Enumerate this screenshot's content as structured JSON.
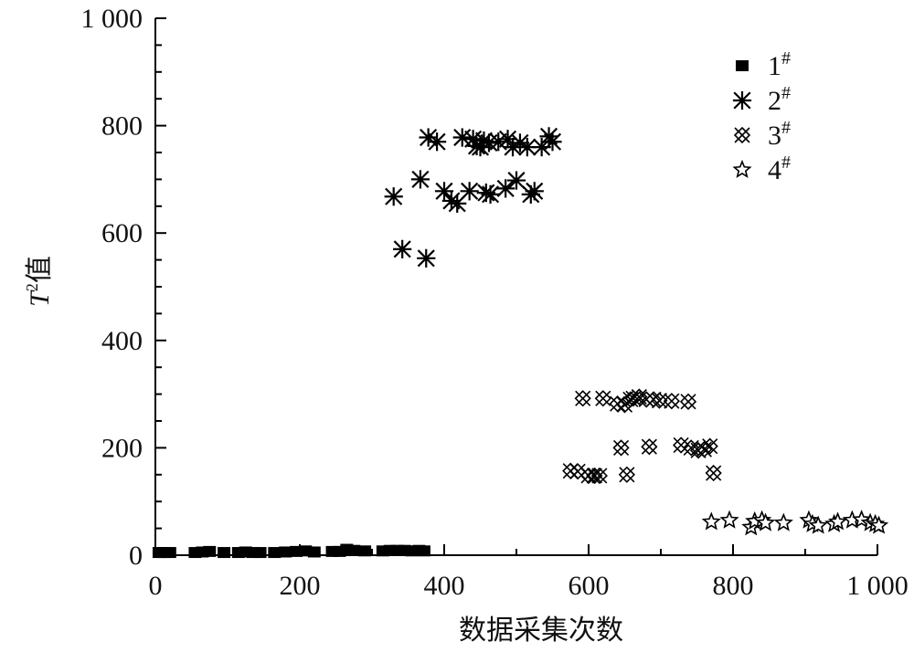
{
  "chart_data": {
    "type": "scatter",
    "xlabel": "数据采集次数",
    "ylabel_symbol": "T",
    "ylabel_sup": "2",
    "ylabel_rest": "值",
    "xlim": [
      0,
      1000
    ],
    "ylim": [
      0,
      1000
    ],
    "x_ticks": [
      0,
      200,
      400,
      600,
      800,
      1000
    ],
    "x_tick_labels": [
      "0",
      "200",
      "400",
      "600",
      "800",
      "1 000"
    ],
    "y_ticks": [
      0,
      200,
      400,
      600,
      800,
      1000
    ],
    "y_tick_labels": [
      "0",
      "200",
      "400",
      "600",
      "800",
      "1 000"
    ],
    "legend_position": "top-right",
    "series": [
      {
        "name": "1",
        "name_sup": "#",
        "marker": "square",
        "points": [
          [
            5,
            5
          ],
          [
            12,
            5
          ],
          [
            20,
            5
          ],
          [
            55,
            5
          ],
          [
            65,
            6
          ],
          [
            75,
            7
          ],
          [
            95,
            5
          ],
          [
            115,
            5
          ],
          [
            125,
            6
          ],
          [
            135,
            5
          ],
          [
            145,
            5
          ],
          [
            165,
            5
          ],
          [
            180,
            6
          ],
          [
            195,
            7
          ],
          [
            208,
            8
          ],
          [
            220,
            6
          ],
          [
            245,
            7
          ],
          [
            255,
            7
          ],
          [
            265,
            11
          ],
          [
            275,
            9
          ],
          [
            290,
            8
          ],
          [
            315,
            8
          ],
          [
            325,
            9
          ],
          [
            335,
            9
          ],
          [
            345,
            9
          ],
          [
            355,
            8
          ],
          [
            365,
            9
          ],
          [
            372,
            8
          ]
        ]
      },
      {
        "name": "2",
        "name_sup": "#",
        "marker": "asterisk",
        "points": [
          [
            330,
            668
          ],
          [
            342,
            570
          ],
          [
            367,
            700
          ],
          [
            375,
            553
          ],
          [
            378,
            778
          ],
          [
            390,
            770
          ],
          [
            400,
            678
          ],
          [
            410,
            660
          ],
          [
            418,
            655
          ],
          [
            425,
            778
          ],
          [
            435,
            678
          ],
          [
            440,
            775
          ],
          [
            445,
            762
          ],
          [
            450,
            760
          ],
          [
            455,
            772
          ],
          [
            458,
            675
          ],
          [
            462,
            768
          ],
          [
            464,
            672
          ],
          [
            475,
            770
          ],
          [
            485,
            683
          ],
          [
            488,
            775
          ],
          [
            495,
            760
          ],
          [
            500,
            698
          ],
          [
            505,
            768
          ],
          [
            515,
            760
          ],
          [
            520,
            672
          ],
          [
            525,
            678
          ],
          [
            535,
            760
          ],
          [
            545,
            780
          ],
          [
            550,
            770
          ]
        ]
      },
      {
        "name": "3",
        "name_sup": "#",
        "marker": "crossed-x",
        "points": [
          [
            575,
            157
          ],
          [
            585,
            156
          ],
          [
            592,
            292
          ],
          [
            600,
            148
          ],
          [
            608,
            148
          ],
          [
            615,
            148
          ],
          [
            620,
            292
          ],
          [
            640,
            282
          ],
          [
            645,
            200
          ],
          [
            650,
            280
          ],
          [
            653,
            150
          ],
          [
            658,
            290
          ],
          [
            662,
            292
          ],
          [
            670,
            295
          ],
          [
            680,
            290
          ],
          [
            684,
            202
          ],
          [
            690,
            290
          ],
          [
            698,
            288
          ],
          [
            715,
            287
          ],
          [
            728,
            205
          ],
          [
            738,
            286
          ],
          [
            742,
            200
          ],
          [
            752,
            195
          ],
          [
            760,
            197
          ],
          [
            768,
            203
          ],
          [
            773,
            153
          ]
        ]
      },
      {
        "name": "4",
        "name_sup": "#",
        "marker": "star",
        "points": [
          [
            770,
            62
          ],
          [
            795,
            65
          ],
          [
            825,
            52
          ],
          [
            830,
            63
          ],
          [
            840,
            65
          ],
          [
            845,
            60
          ],
          [
            870,
            60
          ],
          [
            905,
            65
          ],
          [
            910,
            58
          ],
          [
            918,
            55
          ],
          [
            940,
            58
          ],
          [
            945,
            62
          ],
          [
            965,
            65
          ],
          [
            978,
            66
          ],
          [
            990,
            60
          ],
          [
            997,
            58
          ],
          [
            1002,
            55
          ]
        ]
      }
    ]
  }
}
